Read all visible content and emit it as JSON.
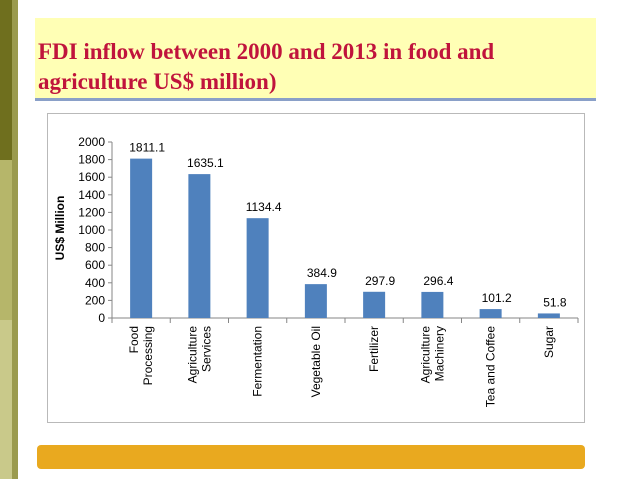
{
  "slide": {
    "title": "FDI inflow between 2000 and 2013 in food and agriculture US$ million)"
  },
  "colors": {
    "bar": "#4f81bd",
    "title_text": "#c0143c",
    "title_background": "#ffffb5",
    "bottom_band": "#e9a91f"
  },
  "chart_data": {
    "type": "bar",
    "categories": [
      [
        "Food",
        "Processing"
      ],
      [
        "Agriculture",
        "Services"
      ],
      [
        "Fermentation"
      ],
      [
        "Vegetable Oil"
      ],
      [
        "Fertilizer"
      ],
      [
        "Agriculture",
        "Machinery"
      ],
      [
        "Tea and Coffee"
      ],
      [
        "Sugar"
      ]
    ],
    "values": [
      1811.1,
      1635.1,
      1134.4,
      384.9,
      297.9,
      296.4,
      101.2,
      51.8
    ],
    "data_labels": [
      "1811.1",
      "1635.1",
      "1134.4",
      "384.9",
      "297.9",
      "296.4",
      "101.2",
      "51.8"
    ],
    "ylabel": "US$ Million",
    "ylim": [
      0,
      2000
    ],
    "yticks": [
      0,
      200,
      400,
      600,
      800,
      1000,
      1200,
      1400,
      1600,
      1800,
      2000
    ],
    "grid": false,
    "legend": "none"
  }
}
